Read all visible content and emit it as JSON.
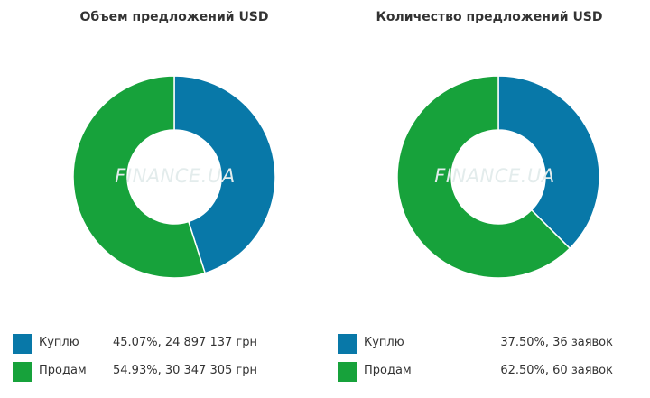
{
  "chart_data": [
    {
      "type": "donut",
      "title": "Объем предложений USD",
      "watermark": "FINANCE.UA",
      "series": [
        {
          "label": "Куплю",
          "percent": 45.07,
          "value_text": "45.07%, 24 897 137 грн",
          "color": "#0878a8"
        },
        {
          "label": "Продам",
          "percent": 54.93,
          "value_text": "54.93%, 30 347 305 грн",
          "color": "#17a23b"
        }
      ]
    },
    {
      "type": "donut",
      "title": "Количество предложений USD",
      "watermark": "FINANCE.UA",
      "series": [
        {
          "label": "Куплю",
          "percent": 37.5,
          "value_text": "37.50%, 36 заявок",
          "color": "#0878a8"
        },
        {
          "label": "Продам",
          "percent": 62.5,
          "value_text": "62.50%, 60 заявок",
          "color": "#17a23b"
        }
      ]
    }
  ]
}
